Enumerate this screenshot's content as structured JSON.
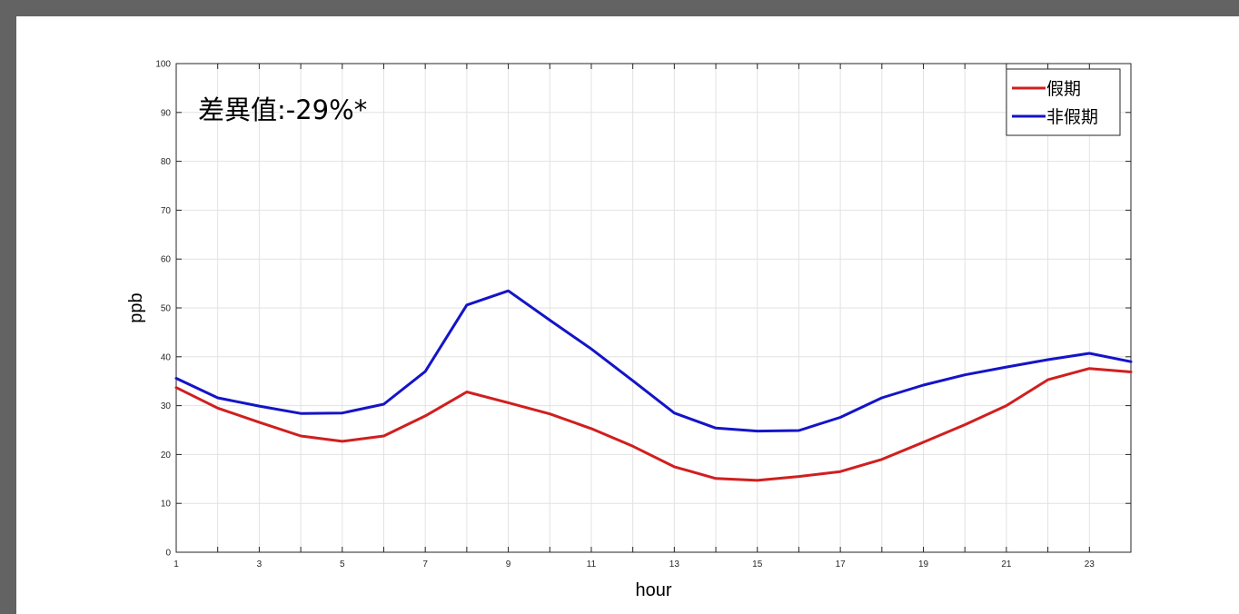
{
  "chart_data": {
    "type": "line",
    "title": "",
    "xlabel": "hour",
    "ylabel": "ppb",
    "xlim": [
      1,
      24
    ],
    "ylim": [
      0,
      100
    ],
    "xticks": [
      1,
      3,
      5,
      7,
      9,
      11,
      13,
      15,
      17,
      19,
      21,
      23
    ],
    "yticks": [
      0,
      10,
      20,
      30,
      40,
      50,
      60,
      70,
      80,
      90,
      100
    ],
    "grid": true,
    "legend_position": "top-right",
    "annotation": "差異值:-29%*",
    "x": [
      1,
      2,
      3,
      4,
      5,
      6,
      7,
      8,
      9,
      10,
      11,
      12,
      13,
      14,
      15,
      16,
      17,
      18,
      19,
      20,
      21,
      22,
      23,
      24
    ],
    "series": [
      {
        "name": "假期",
        "color": "#d01f1f",
        "values": [
          33.7,
          29.5,
          26.6,
          23.8,
          22.7,
          23.8,
          27.9,
          32.8,
          30.6,
          28.3,
          25.3,
          21.7,
          17.5,
          15.1,
          14.7,
          15.5,
          16.5,
          19.0,
          22.5,
          26.1,
          30.0,
          35.3,
          37.6,
          36.9
        ]
      },
      {
        "name": "非假期",
        "color": "#1414c8",
        "values": [
          35.6,
          31.6,
          29.9,
          28.4,
          28.5,
          30.3,
          37.0,
          50.6,
          53.5,
          47.5,
          41.6,
          35.1,
          28.5,
          25.4,
          24.8,
          24.9,
          27.6,
          31.6,
          34.2,
          36.3,
          37.9,
          39.4,
          40.7,
          39.0
        ]
      }
    ]
  }
}
